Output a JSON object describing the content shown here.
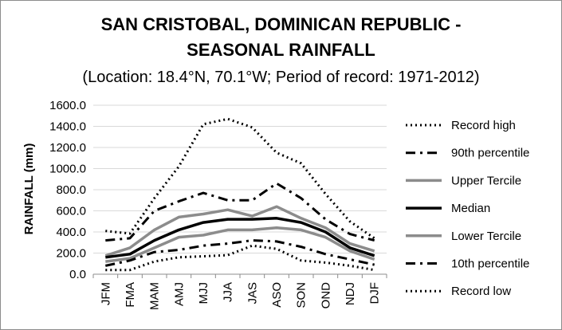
{
  "chart_data": {
    "type": "line",
    "title_line1": "SAN CRISTOBAL, DOMINICAN REPUBLIC -",
    "title_line2": "SEASONAL RAINFALL",
    "subtitle": "(Location: 18.4°N, 70.1°W; Period of record: 1971-2012)",
    "ylabel": "RAINFALL (mm)",
    "xlabel": "",
    "ylim": [
      0,
      1600
    ],
    "yticks": [
      "0.0",
      "200.0",
      "400.0",
      "600.0",
      "800.0",
      "1000.0",
      "1200.0",
      "1400.0",
      "1600.0"
    ],
    "grid": "horizontal",
    "legend_position": "right",
    "categories": [
      "JFM",
      "FMA",
      "MAM",
      "AMJ",
      "MJJ",
      "JJA",
      "JAS",
      "ASO",
      "SON",
      "OND",
      "NDJ",
      "DJF"
    ],
    "series": [
      {
        "name": "Record high",
        "color": "#000000",
        "style": "dotted",
        "values": [
          410,
          385,
          720,
          1020,
          1420,
          1470,
          1390,
          1150,
          1050,
          760,
          500,
          340
        ]
      },
      {
        "name": "90th percentile",
        "color": "#000000",
        "style": "dashdot",
        "values": [
          320,
          340,
          600,
          690,
          770,
          700,
          700,
          860,
          720,
          520,
          380,
          320
        ]
      },
      {
        "name": "Upper Tercile",
        "color": "#8c8c8c",
        "style": "solid",
        "values": [
          175,
          250,
          420,
          540,
          570,
          610,
          550,
          640,
          530,
          440,
          290,
          220
        ]
      },
      {
        "name": "Median",
        "color": "#000000",
        "style": "solid",
        "values": [
          160,
          190,
          320,
          420,
          490,
          520,
          520,
          530,
          490,
          400,
          250,
          175
        ]
      },
      {
        "name": "Lower Tercile",
        "color": "#8c8c8c",
        "style": "solid",
        "values": [
          120,
          150,
          250,
          350,
          370,
          420,
          420,
          440,
          420,
          350,
          220,
          140
        ]
      },
      {
        "name": "10th percentile",
        "color": "#000000",
        "style": "dashdot",
        "values": [
          80,
          130,
          210,
          230,
          270,
          290,
          320,
          310,
          260,
          190,
          140,
          90
        ]
      },
      {
        "name": "Record low",
        "color": "#000000",
        "style": "dotted",
        "values": [
          40,
          40,
          120,
          160,
          170,
          180,
          270,
          240,
          130,
          110,
          80,
          40
        ]
      }
    ]
  }
}
